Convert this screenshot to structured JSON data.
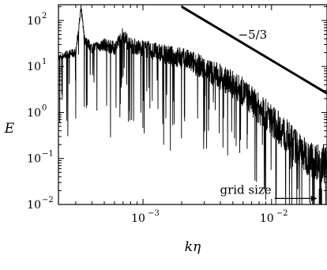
{
  "chart_data": {
    "type": "line",
    "title": "",
    "xlabel": "kη",
    "ylabel": "E",
    "xscale": "log",
    "yscale": "log",
    "xlim": [
      0.00022,
      0.027
    ],
    "ylim": [
      0.01,
      220
    ],
    "x_ticks": [
      {
        "base": "10",
        "exp": "−3",
        "value": 0.001
      },
      {
        "base": "10",
        "exp": "−2",
        "value": 0.01
      }
    ],
    "y_ticks": [
      {
        "base": "10",
        "exp": "2",
        "value": 100
      },
      {
        "base": "10",
        "exp": "1",
        "value": 10
      },
      {
        "base": "10",
        "exp": "0",
        "value": 1
      },
      {
        "base": "10",
        "exp": "−1",
        "value": 0.1
      },
      {
        "base": "10",
        "exp": "−2",
        "value": 0.01
      }
    ],
    "series": [
      {
        "color": "#000000",
        "x": [
          0.00022,
          0.00025,
          0.0003,
          0.00033,
          0.00035,
          0.0004,
          0.0005,
          0.0006,
          0.0007,
          0.0008,
          0.001,
          0.0013,
          0.0015,
          0.002,
          0.0025,
          0.003,
          0.004,
          0.005,
          0.006,
          0.007,
          0.008,
          0.01,
          0.012,
          0.015,
          0.018,
          0.02,
          0.022,
          0.025,
          0.027
        ],
        "y": [
          15,
          18,
          20,
          180,
          40,
          25,
          30,
          25,
          50,
          28,
          25,
          20,
          18,
          15,
          12,
          9,
          6,
          4,
          2.8,
          1.8,
          1.2,
          0.7,
          0.4,
          0.2,
          0.12,
          0.1,
          0.09,
          0.08,
          0.08
        ]
      }
    ],
    "reference_line": {
      "label": "−5/3",
      "slope": -1.6667,
      "x": [
        0.002,
        0.027
      ],
      "y": [
        200,
        2.6
      ]
    },
    "annotation": {
      "text": "grid size",
      "x": 0.024,
      "y_range": [
        0.01,
        0.022
      ]
    },
    "grid": false,
    "legend": "none"
  }
}
